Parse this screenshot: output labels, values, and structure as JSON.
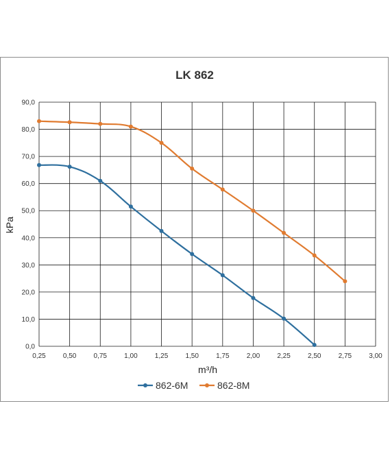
{
  "chart_data": {
    "type": "line",
    "title": "LK 862",
    "xlabel": "m³/h",
    "ylabel": "kPa",
    "xlim": [
      0.25,
      3.0
    ],
    "ylim": [
      0,
      90
    ],
    "x_ticks": [
      "0,25",
      "0,50",
      "0,75",
      "1,00",
      "1,25",
      "1,50",
      "1,75",
      "2,00",
      "2,25",
      "2,50",
      "2,75",
      "3,00"
    ],
    "y_ticks": [
      "0,0",
      "10,0",
      "20,0",
      "30,0",
      "40,0",
      "50,0",
      "60,0",
      "70,0",
      "80,0",
      "90,0"
    ],
    "grid": true,
    "legend_position": "bottom",
    "series": [
      {
        "name": "862-6M",
        "color": "#2e6f9e",
        "x": [
          0.25,
          0.5,
          0.75,
          1.0,
          1.25,
          1.5,
          1.75,
          2.0,
          2.25,
          2.5
        ],
        "y": [
          66.8,
          66.2,
          61.0,
          51.5,
          42.5,
          34.0,
          26.2,
          17.8,
          10.2,
          0.5
        ]
      },
      {
        "name": "862-8M",
        "color": "#e07b30",
        "x": [
          0.25,
          0.5,
          0.75,
          1.0,
          1.25,
          1.5,
          1.75,
          2.0,
          2.25,
          2.5,
          2.75
        ],
        "y": [
          83.0,
          82.6,
          82.0,
          81.0,
          75.0,
          65.5,
          57.8,
          50.0,
          41.8,
          33.5,
          24.0
        ]
      }
    ]
  }
}
